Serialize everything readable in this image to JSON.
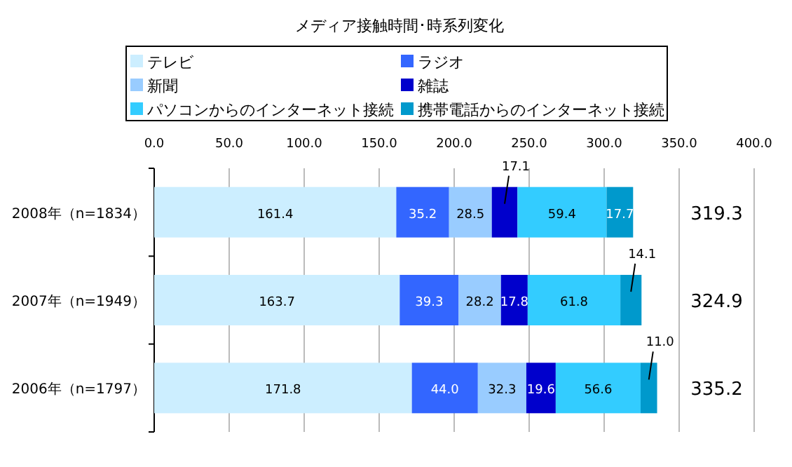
{
  "chart_data": {
    "type": "bar",
    "orientation": "horizontal",
    "stacked": true,
    "title": "メディア接触時間･時系列変化",
    "categories": [
      "2008年（n=1834）",
      "2007年（n=1949）",
      "2006年（n=1797）"
    ],
    "series": [
      {
        "name": "テレビ",
        "color": "#cceeff",
        "values": [
          161.4,
          163.7,
          171.8
        ],
        "value_labels": [
          "161.4",
          "163.7",
          "171.8"
        ]
      },
      {
        "name": "ラジオ",
        "color": "#3366ff",
        "values": [
          35.2,
          39.3,
          44
        ],
        "value_labels": [
          "35.2",
          "39.3",
          "44.0"
        ]
      },
      {
        "name": "新聞",
        "color": "#99ccff",
        "values": [
          28.5,
          28.2,
          32.3
        ],
        "value_labels": [
          "28.5",
          "28.2",
          "32.3"
        ]
      },
      {
        "name": "雑誌",
        "color": "#0000cc",
        "values": [
          17.1,
          17.8,
          19.6
        ],
        "value_labels": [
          "17.1",
          "17.8",
          "19.6"
        ]
      },
      {
        "name": "パソコンからのインターネット接続",
        "color": "#33ccff",
        "values": [
          59.4,
          61.8,
          56.6
        ],
        "value_labels": [
          "59.4",
          "61.8",
          "56.6"
        ]
      },
      {
        "name": "携帯電話からのインターネット接続",
        "color": "#0099cc",
        "values": [
          17.7,
          14.1,
          11
        ],
        "value_labels": [
          "17.7",
          "14.1",
          "11.0"
        ]
      }
    ],
    "xlim": [
      0,
      400
    ],
    "xticks": [
      {
        "value": 0,
        "label": "0.0"
      },
      {
        "value": 50,
        "label": "50.0"
      },
      {
        "value": 100,
        "label": "100.0"
      },
      {
        "value": 150,
        "label": "150.0"
      },
      {
        "value": 200,
        "label": "200.0"
      },
      {
        "value": 250,
        "label": "250.0"
      },
      {
        "value": 300,
        "label": "300.0"
      },
      {
        "value": 350,
        "label": "350.0"
      },
      {
        "value": 400,
        "label": "400.0"
      }
    ],
    "grid": "x",
    "legend": "top",
    "totals": [
      "319.3",
      "324.9",
      "335.2"
    ]
  }
}
